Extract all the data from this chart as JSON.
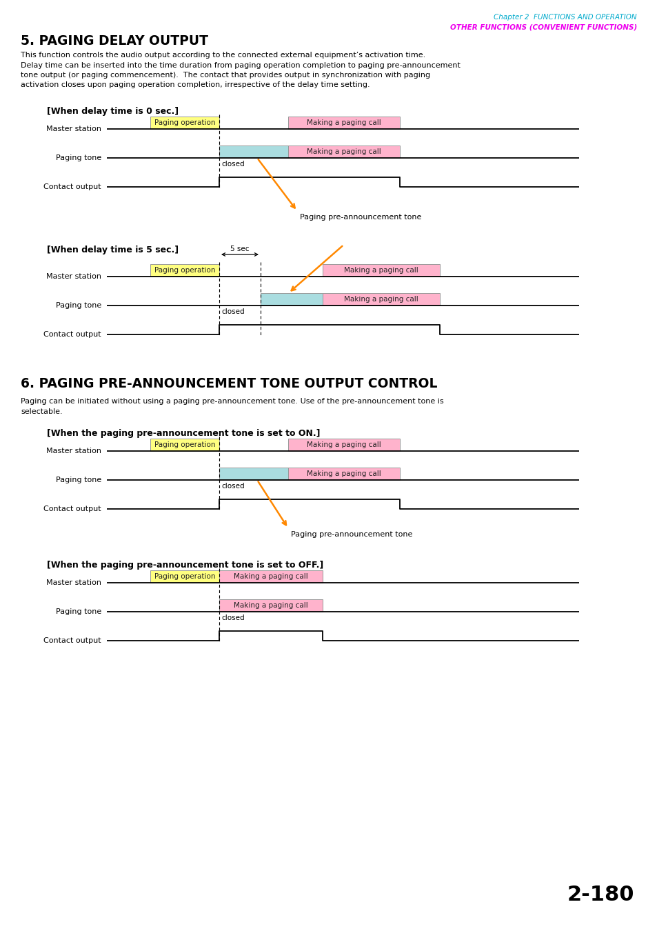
{
  "page_num": "2-180",
  "header_line1": "Chapter 2  FUNCTIONS AND OPERATION",
  "header_line2": "OTHER FUNCTIONS (CONVENIENT FUNCTIONS)",
  "section5_title": "5. PAGING DELAY OUTPUT",
  "section5_body_lines": [
    "This function controls the audio output according to the connected external equipment’s activation time.",
    "Delay time can be inserted into the time duration from paging operation completion to paging pre-announcement",
    "tone output (or paging commencement).  The contact that provides output in synchronization with paging",
    "activation closes upon paging operation completion, irrespective of the delay time setting."
  ],
  "section6_title": "6. PAGING PRE-ANNOUNCEMENT TONE OUTPUT CONTROL",
  "section6_body_lines": [
    "Paging can be initiated without using a paging pre-announcement tone. Use of the pre-announcement tone is",
    "selectable."
  ],
  "yellow_color": "#FFFF80",
  "pink_color": "#FFB3CC",
  "cyan_color": "#AADDE0",
  "orange_color": "#FF8800",
  "bg_color": "#FFFFFF",
  "text_color": "#000000",
  "header1_color": "#00AACC",
  "header2_color": "#EE00EE"
}
